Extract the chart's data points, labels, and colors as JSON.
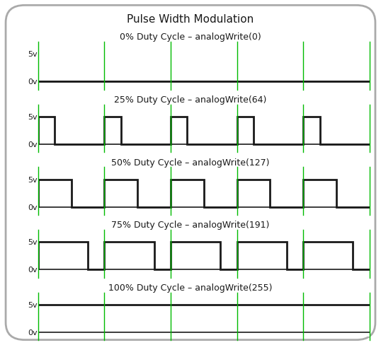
{
  "title": "Pulse Width Modulation",
  "background_color": "#ffffff",
  "panel_bg": "#ffffff",
  "waveform_color": "#1a1a1a",
  "vline_color": "#00bb00",
  "border_color": "#aaaaaa",
  "panels": [
    {
      "label": "0% Duty Cycle – analogWrite(0)",
      "duty": 0.0
    },
    {
      "label": "25% Duty Cycle – analogWrite(64)",
      "duty": 0.25
    },
    {
      "label": "50% Duty Cycle – analogWrite(127)",
      "duty": 0.5
    },
    {
      "label": "75% Duty Cycle – analogWrite(191)",
      "duty": 0.75
    },
    {
      "label": "100% Duty Cycle – analogWrite(255)",
      "duty": 1.0
    }
  ],
  "num_cycles": 5,
  "ylabels_top": "5v",
  "ylabels_bot": "0v",
  "signal_lw": 2.0,
  "vline_lw": 1.0,
  "title_fontsize": 11,
  "label_fontsize": 9,
  "ylabel_fontsize": 8,
  "fig_w": 5.38,
  "fig_h": 4.88,
  "dpi": 100
}
